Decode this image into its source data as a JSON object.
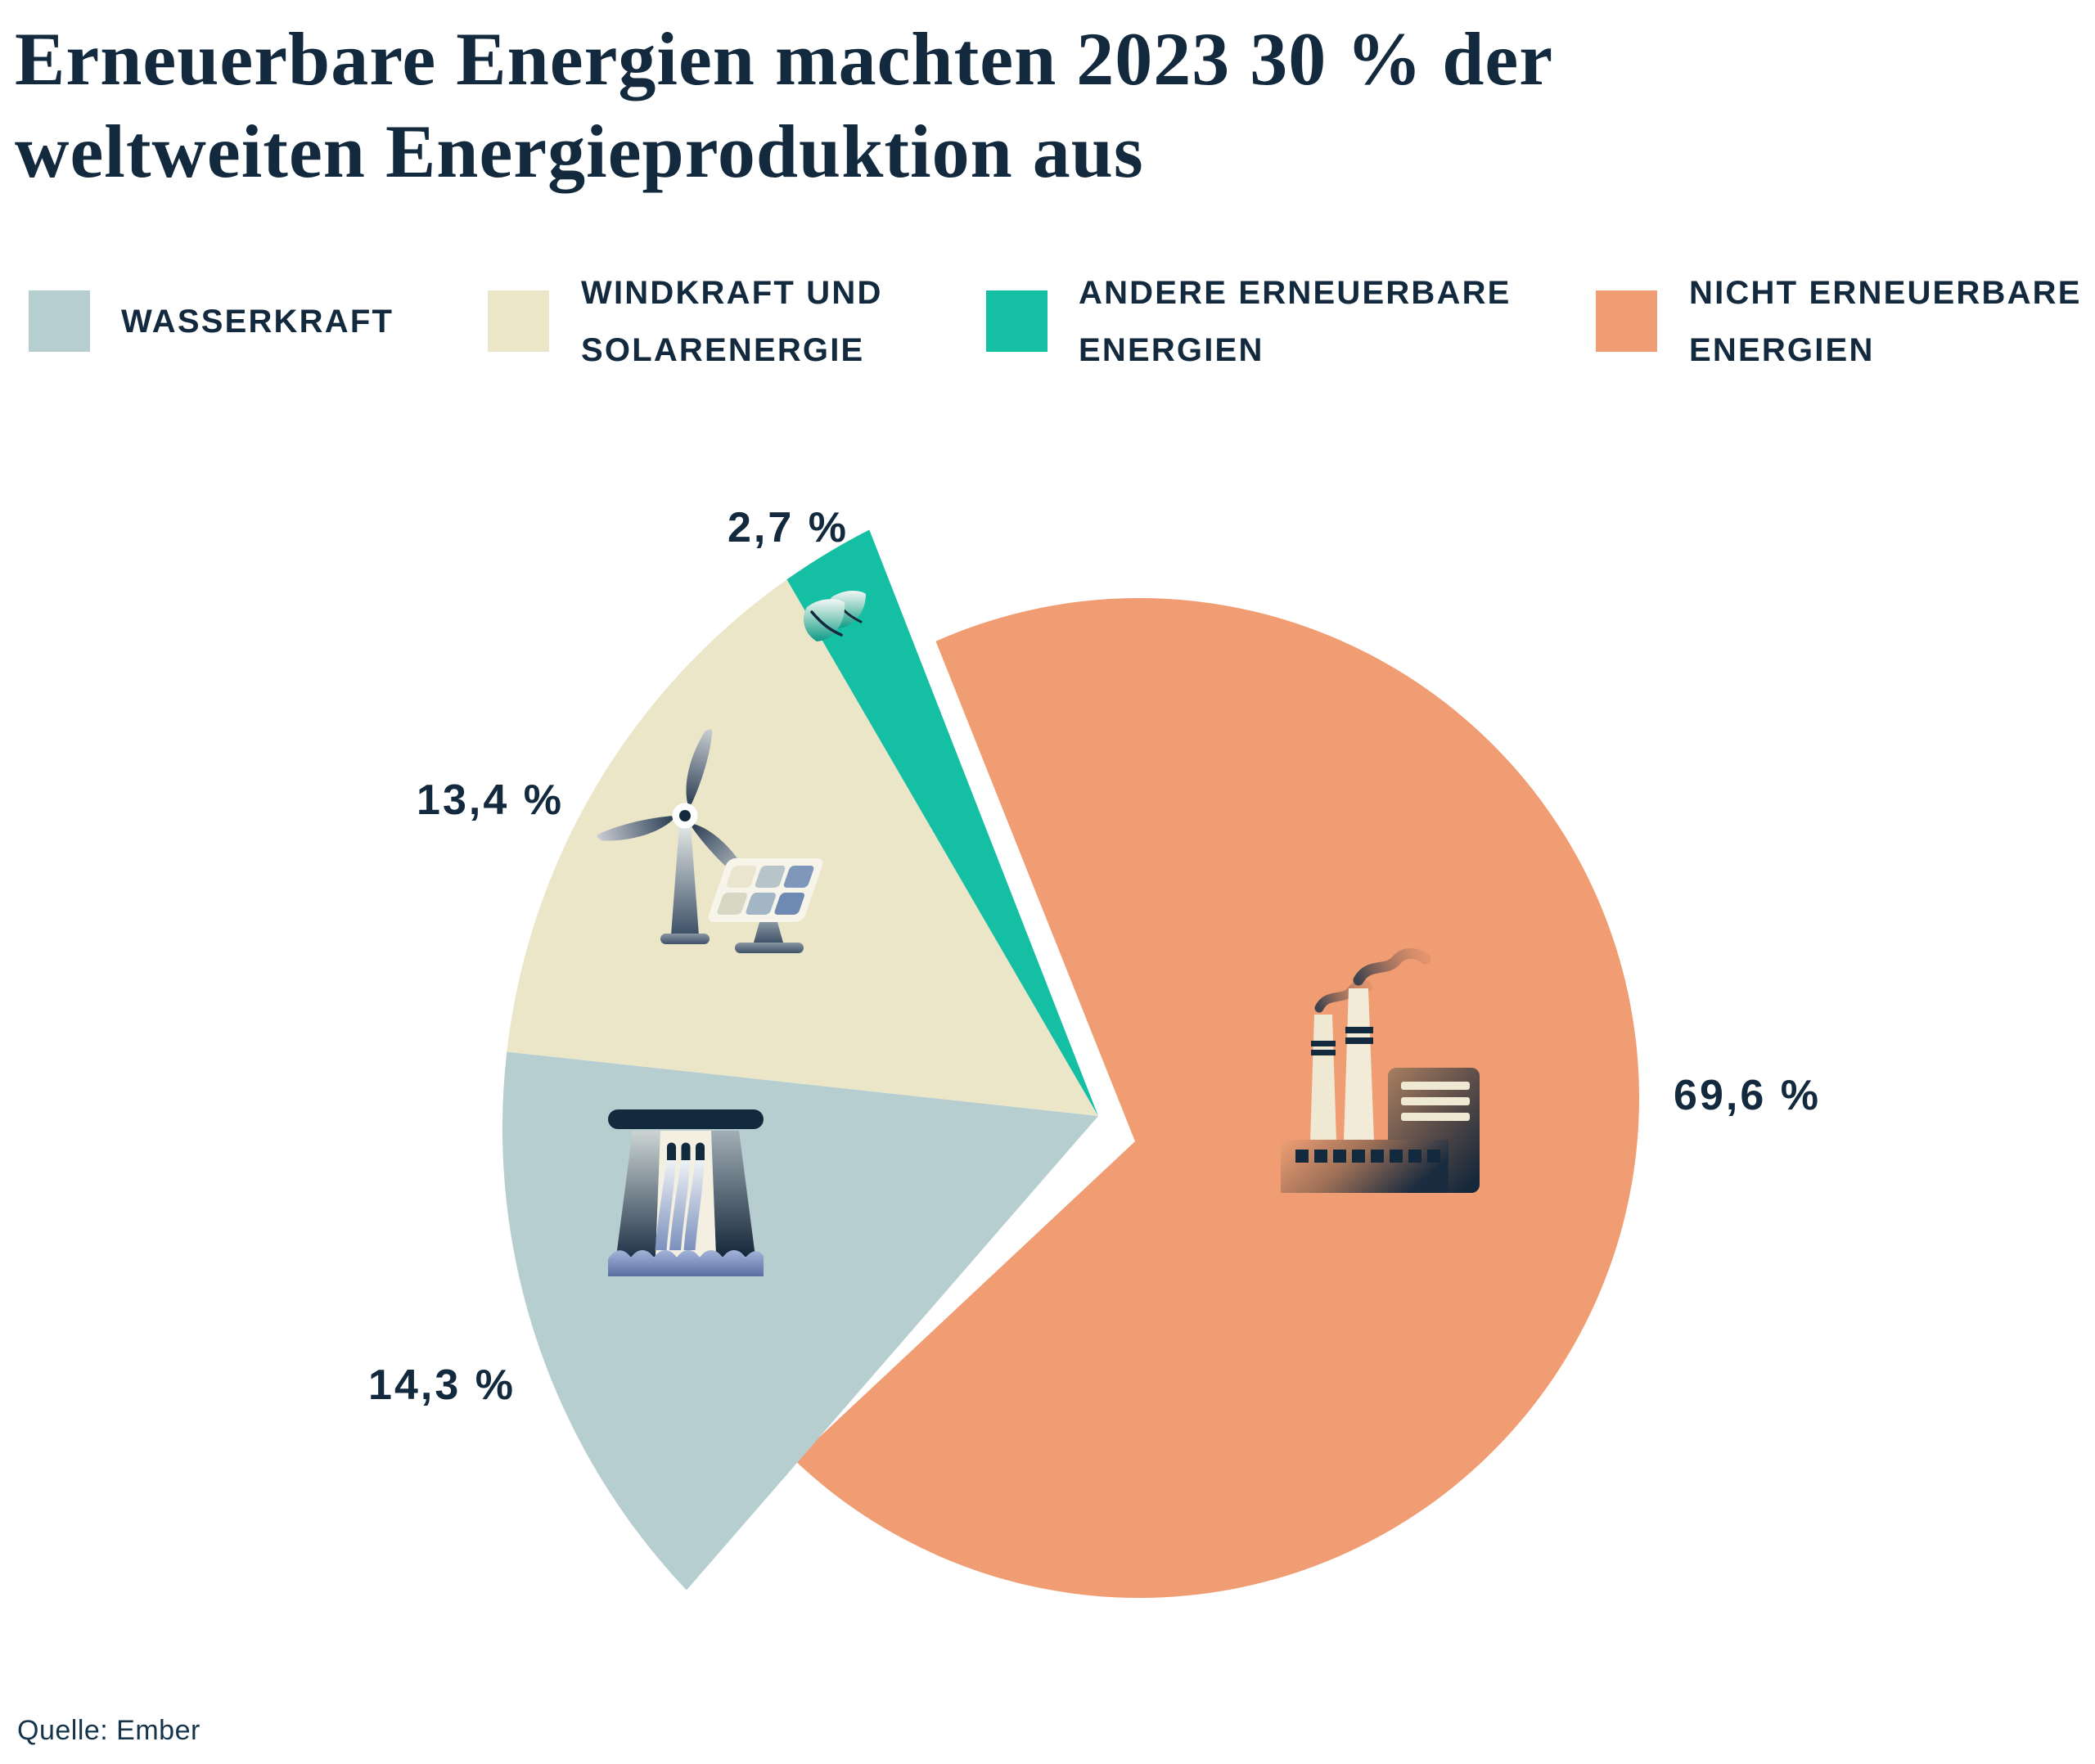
{
  "title": {
    "line1": "Erneuerbare Energien machten 2023 30 % der",
    "line2": "weltweiten Energieproduktion aus"
  },
  "source": "Quelle: Ember",
  "palette": {
    "text_navy": "#13293d",
    "hydro": "#B6CECF",
    "wind_solar": "#ECE6C9",
    "other_renewables": "#14BFA3",
    "non_renewables": "#F09D73",
    "background": "#ffffff"
  },
  "legend": {
    "items": [
      {
        "id": "wasserkraft",
        "color": "#B6CECF",
        "lines": [
          "WASSERKRAFT"
        ]
      },
      {
        "id": "windkraft-solar",
        "color": "#ECE6C9",
        "lines": [
          "WINDKRAFT UND",
          "SOLARENERGIE"
        ]
      },
      {
        "id": "andere-erneuerbare",
        "color": "#14BFA3",
        "lines": [
          "ANDERE ERNEUERBARE",
          "ENERGIEN"
        ]
      },
      {
        "id": "nicht-erneuerbare",
        "color": "#F09D73",
        "lines": [
          "NICHT ERNEUERBARE",
          "ENERGIEN"
        ]
      }
    ]
  },
  "chart_data": {
    "type": "pie",
    "title": "Erneuerbare Energien machten 2023 30 % der weltweiten Energieproduktion aus",
    "unit": "%",
    "renewables_total_percent": 30,
    "year": 2023,
    "layout": {
      "exploded": true,
      "start_angle_deg": 334.5,
      "clockwise": true,
      "legend_position": "top"
    },
    "slices": [
      {
        "id": "nicht-erneuerbare-energien",
        "name": "Nicht erneuerbare Energien",
        "value": 69.6,
        "label": "69,6 %",
        "color": "#F09D73",
        "icon": "factory-icon"
      },
      {
        "id": "wasserkraft",
        "name": "Wasserkraft",
        "value": 14.3,
        "label": "14,3 %",
        "color": "#B6CECF",
        "icon": "dam-icon"
      },
      {
        "id": "windkraft-und-solarenergie",
        "name": "Windkraft und Solarenergie",
        "value": 13.4,
        "label": "13,4 %",
        "color": "#ECE6C9",
        "icon": "wind-turbine-solar-panel-icon"
      },
      {
        "id": "andere-erneuerbare-energien",
        "name": "Andere erneuerbare Energien",
        "value": 2.7,
        "label": "2,7 %",
        "color": "#14BFA3",
        "icon": "leaf-icon"
      }
    ]
  }
}
